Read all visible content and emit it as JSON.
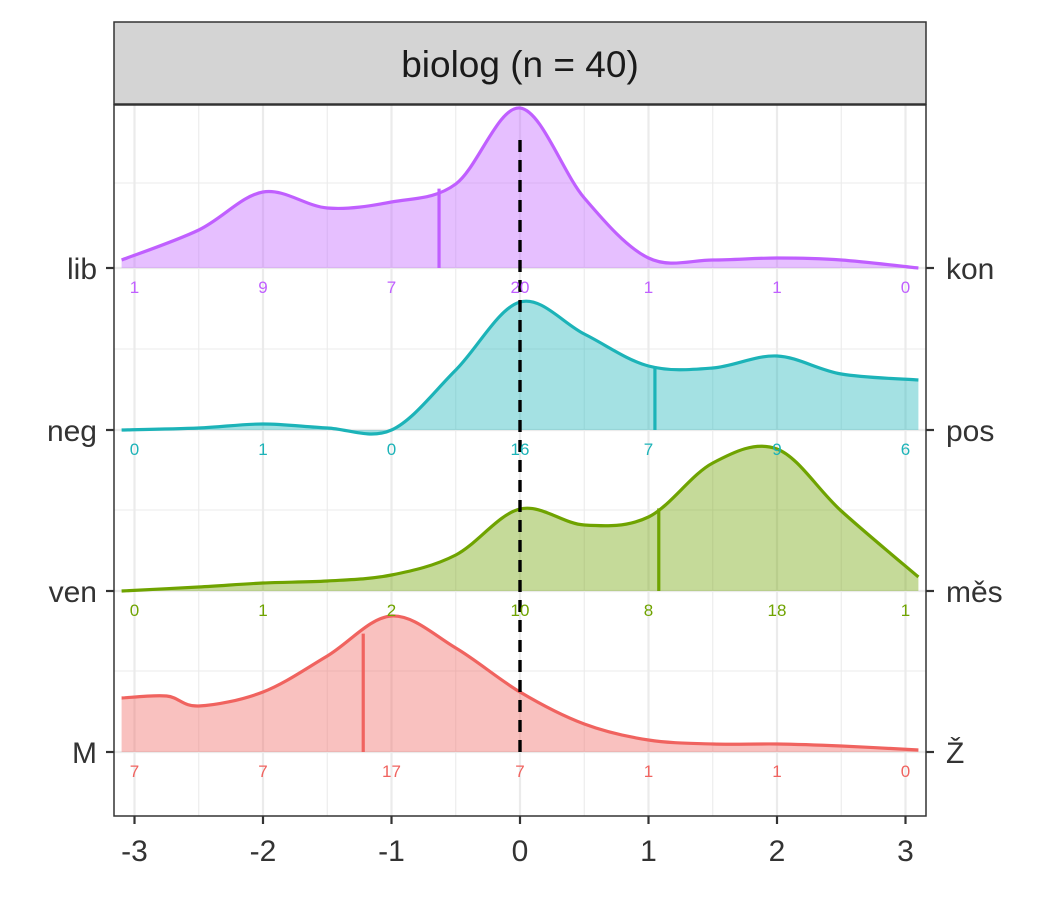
{
  "chart_data": {
    "type": "area",
    "title": "biolog (n = 40)",
    "xlabel": "",
    "ylabel": "",
    "xlim": [
      -3.1,
      3.1
    ],
    "x_ticks": [
      "-3",
      "-2",
      "-1",
      "0",
      "1",
      "2",
      "3"
    ],
    "grid": true,
    "reference_line_x": 0,
    "count_positions": [
      -3,
      -2,
      -1,
      0,
      1,
      2,
      3
    ],
    "series": [
      {
        "left_label": "M",
        "right_label": "Ž",
        "color": "#F0635F",
        "median": -1.22,
        "counts": [
          "7",
          "7",
          "17",
          "7",
          "1",
          "1",
          "0"
        ],
        "density_x": [
          -3.1,
          -2.75,
          -2.5,
          -2.0,
          -1.5,
          -1.0,
          -0.5,
          0.0,
          0.5,
          1.0,
          1.5,
          2.0,
          2.5,
          3.1
        ],
        "density_y": [
          0.27,
          0.28,
          0.23,
          0.3,
          0.48,
          0.68,
          0.52,
          0.3,
          0.14,
          0.06,
          0.04,
          0.04,
          0.03,
          0.01
        ]
      },
      {
        "left_label": "ven",
        "right_label": "měs",
        "color": "#6FA300",
        "median": 1.08,
        "counts": [
          "0",
          "1",
          "2",
          "10",
          "8",
          "18",
          "1"
        ],
        "density_x": [
          -3.1,
          -2.5,
          -2.0,
          -1.5,
          -1.0,
          -0.5,
          0.0,
          0.5,
          1.0,
          1.5,
          2.0,
          2.5,
          3.1
        ],
        "density_y": [
          0.0,
          0.02,
          0.04,
          0.05,
          0.08,
          0.18,
          0.41,
          0.33,
          0.37,
          0.64,
          0.71,
          0.4,
          0.07
        ]
      },
      {
        "left_label": "neg",
        "right_label": "pos",
        "color": "#1CB3B8",
        "median": 1.05,
        "counts": [
          "0",
          "1",
          "0",
          "16",
          "7",
          "9",
          "6"
        ],
        "density_x": [
          -3.1,
          -2.5,
          -2.0,
          -1.5,
          -1.0,
          -0.5,
          0.0,
          0.5,
          1.0,
          1.5,
          2.0,
          2.5,
          3.1
        ],
        "density_y": [
          0.0,
          0.01,
          0.03,
          0.01,
          0.0,
          0.3,
          0.64,
          0.48,
          0.32,
          0.31,
          0.37,
          0.28,
          0.25
        ]
      },
      {
        "left_label": "lib",
        "right_label": "kon",
        "color": "#C05FFF",
        "median": -0.63,
        "counts": [
          "1",
          "9",
          "7",
          "20",
          "1",
          "1",
          "0"
        ],
        "density_x": [
          -3.1,
          -2.5,
          -2.0,
          -1.5,
          -1.0,
          -0.5,
          0.0,
          0.5,
          1.0,
          1.5,
          2.0,
          2.5,
          3.1
        ],
        "density_y": [
          0.04,
          0.19,
          0.38,
          0.3,
          0.33,
          0.42,
          0.8,
          0.35,
          0.05,
          0.04,
          0.05,
          0.04,
          0.0
        ]
      }
    ]
  }
}
